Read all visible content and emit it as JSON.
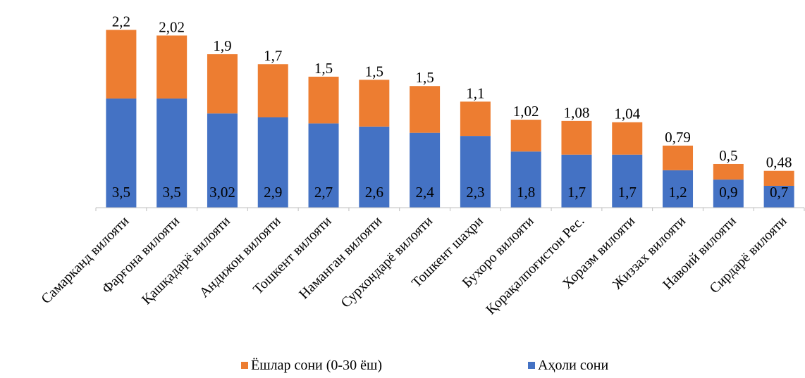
{
  "chart_data": {
    "type": "bar",
    "stacked": true,
    "categories": [
      "Самарканд вилояти",
      "Фарғона вилояти",
      "Қашқадарё вилояти",
      "Андижон вилояти",
      "Тошкент вилояти",
      "Наманган вилояти",
      "Сурхондарё вилояти",
      "Тошкент шаҳри",
      "Бухоро вилояти",
      "Қорақалпоғистон Рес.",
      "Хоразм вилояти",
      "Жиззах вилояти",
      "Навоий вилояти",
      "Сирдарё вилояти"
    ],
    "series": [
      {
        "name": "Аҳоли сони",
        "color": "#4472C4",
        "values": [
          3.5,
          3.5,
          3.02,
          2.9,
          2.7,
          2.6,
          2.4,
          2.3,
          1.8,
          1.7,
          1.7,
          1.2,
          0.9,
          0.7
        ],
        "labels": [
          "3,5",
          "3,5",
          "3,02",
          "2,9",
          "2,7",
          "2,6",
          "2,4",
          "2,3",
          "1,8",
          "1,7",
          "1,7",
          "1,2",
          "0,9",
          "0,7"
        ]
      },
      {
        "name": "Ёшлар сони (0-30 ёш)",
        "color": "#ED7D31",
        "values": [
          2.2,
          2.02,
          1.9,
          1.7,
          1.5,
          1.5,
          1.5,
          1.1,
          1.02,
          1.08,
          1.04,
          0.79,
          0.5,
          0.48
        ],
        "labels": [
          "2,2",
          "2,02",
          "1,9",
          "1,7",
          "1,5",
          "1,5",
          "1,5",
          "1,1",
          "1,02",
          "1,08",
          "1,04",
          "0,79",
          "0,5",
          "0,48"
        ]
      }
    ],
    "legend": {
      "position": "bottom",
      "order": [
        "Ёшлар сони (0-30 ёш)",
        "Аҳоли сони"
      ]
    },
    "grid": false
  }
}
